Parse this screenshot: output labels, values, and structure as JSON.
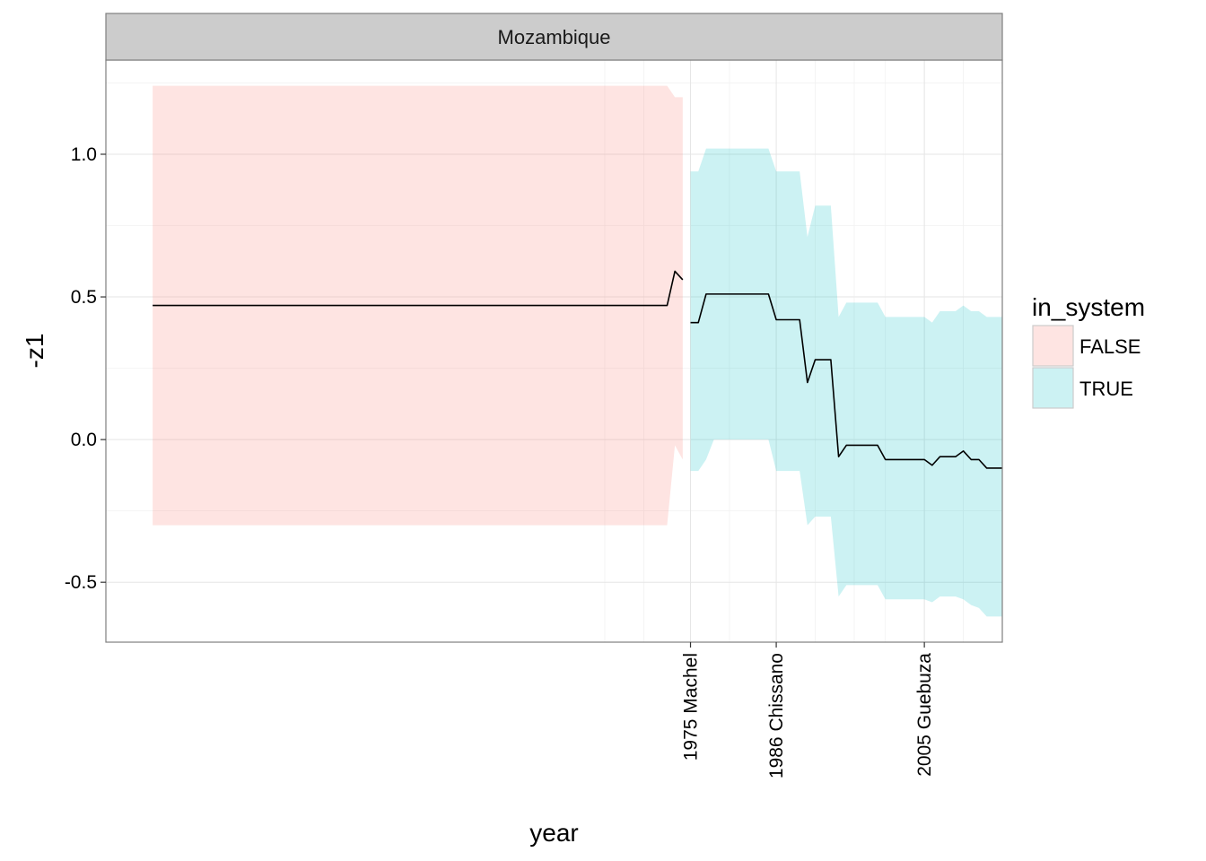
{
  "chart_data": {
    "type": "line",
    "facet": "Mozambique",
    "xlabel": "year",
    "ylabel": "-z1",
    "xlim": [
      1900,
      2015
    ],
    "ylim": [
      -0.71,
      1.33
    ],
    "y_ticks": [
      -0.5,
      0.0,
      0.5,
      1.0
    ],
    "y_tick_labels": [
      "-0.5",
      "0.0",
      "0.5",
      "1.0"
    ],
    "x_ticks": [
      1975,
      1986,
      2005
    ],
    "x_tick_labels": [
      "1975 Machel",
      "1986 Chissano",
      "2005 Guebuza"
    ],
    "x_minor_gridlines": [
      1964,
      1969,
      1980,
      1991,
      1996,
      2000,
      2010
    ],
    "grid": true,
    "legend": {
      "title": "in_system",
      "position": "right",
      "entries": [
        {
          "label": "FALSE",
          "color": "#F8766D"
        },
        {
          "label": "TRUE",
          "color": "#00BFC4"
        }
      ]
    },
    "ribbons": [
      {
        "name": "FALSE",
        "color": "#F8766D",
        "x": [
          1906,
          1972,
          1973,
          1974
        ],
        "upper": [
          1.24,
          1.24,
          1.2,
          1.2
        ],
        "lower": [
          -0.3,
          -0.3,
          -0.02,
          -0.07
        ]
      },
      {
        "name": "TRUE",
        "color": "#00BFC4",
        "x": [
          1975,
          1976,
          1977,
          1978,
          1979,
          1980,
          1981,
          1982,
          1983,
          1984,
          1985,
          1986,
          1987,
          1988,
          1989,
          1990,
          1991,
          1992,
          1993,
          1994,
          1995,
          1996,
          1997,
          1998,
          1999,
          2000,
          2001,
          2002,
          2003,
          2004,
          2005,
          2006,
          2007,
          2008,
          2009,
          2010,
          2011,
          2012,
          2013,
          2014,
          2015
        ],
        "upper": [
          0.94,
          0.94,
          1.02,
          1.02,
          1.02,
          1.02,
          1.02,
          1.02,
          1.02,
          1.02,
          1.02,
          0.94,
          0.94,
          0.94,
          0.94,
          0.71,
          0.82,
          0.82,
          0.82,
          0.43,
          0.48,
          0.48,
          0.48,
          0.48,
          0.48,
          0.43,
          0.43,
          0.43,
          0.43,
          0.43,
          0.43,
          0.41,
          0.45,
          0.45,
          0.45,
          0.47,
          0.45,
          0.45,
          0.43,
          0.43,
          0.43
        ],
        "lower": [
          -0.11,
          -0.11,
          -0.07,
          0.0,
          0.0,
          0.0,
          0.0,
          0.0,
          0.0,
          0.0,
          0.0,
          -0.11,
          -0.11,
          -0.11,
          -0.11,
          -0.3,
          -0.27,
          -0.27,
          -0.27,
          -0.55,
          -0.51,
          -0.51,
          -0.51,
          -0.51,
          -0.51,
          -0.56,
          -0.56,
          -0.56,
          -0.56,
          -0.56,
          -0.56,
          -0.57,
          -0.55,
          -0.55,
          -0.55,
          -0.56,
          -0.58,
          -0.59,
          -0.62,
          -0.62,
          -0.62
        ]
      }
    ],
    "lines": [
      {
        "name": "FALSE",
        "x": [
          1906,
          1972,
          1973,
          1974
        ],
        "y": [
          0.47,
          0.47,
          0.59,
          0.56
        ]
      },
      {
        "name": "TRUE",
        "x": [
          1975,
          1976,
          1977,
          1978,
          1979,
          1980,
          1981,
          1982,
          1983,
          1984,
          1985,
          1986,
          1987,
          1988,
          1989,
          1990,
          1991,
          1992,
          1993,
          1994,
          1995,
          1996,
          1997,
          1998,
          1999,
          2000,
          2001,
          2002,
          2003,
          2004,
          2005,
          2006,
          2007,
          2008,
          2009,
          2010,
          2011,
          2012,
          2013,
          2014,
          2015
        ],
        "y": [
          0.41,
          0.41,
          0.51,
          0.51,
          0.51,
          0.51,
          0.51,
          0.51,
          0.51,
          0.51,
          0.51,
          0.42,
          0.42,
          0.42,
          0.42,
          0.2,
          0.28,
          0.28,
          0.28,
          -0.06,
          -0.02,
          -0.02,
          -0.02,
          -0.02,
          -0.02,
          -0.07,
          -0.07,
          -0.07,
          -0.07,
          -0.07,
          -0.07,
          -0.09,
          -0.06,
          -0.06,
          -0.06,
          -0.04,
          -0.07,
          -0.07,
          -0.1,
          -0.1,
          -0.1
        ]
      }
    ]
  }
}
